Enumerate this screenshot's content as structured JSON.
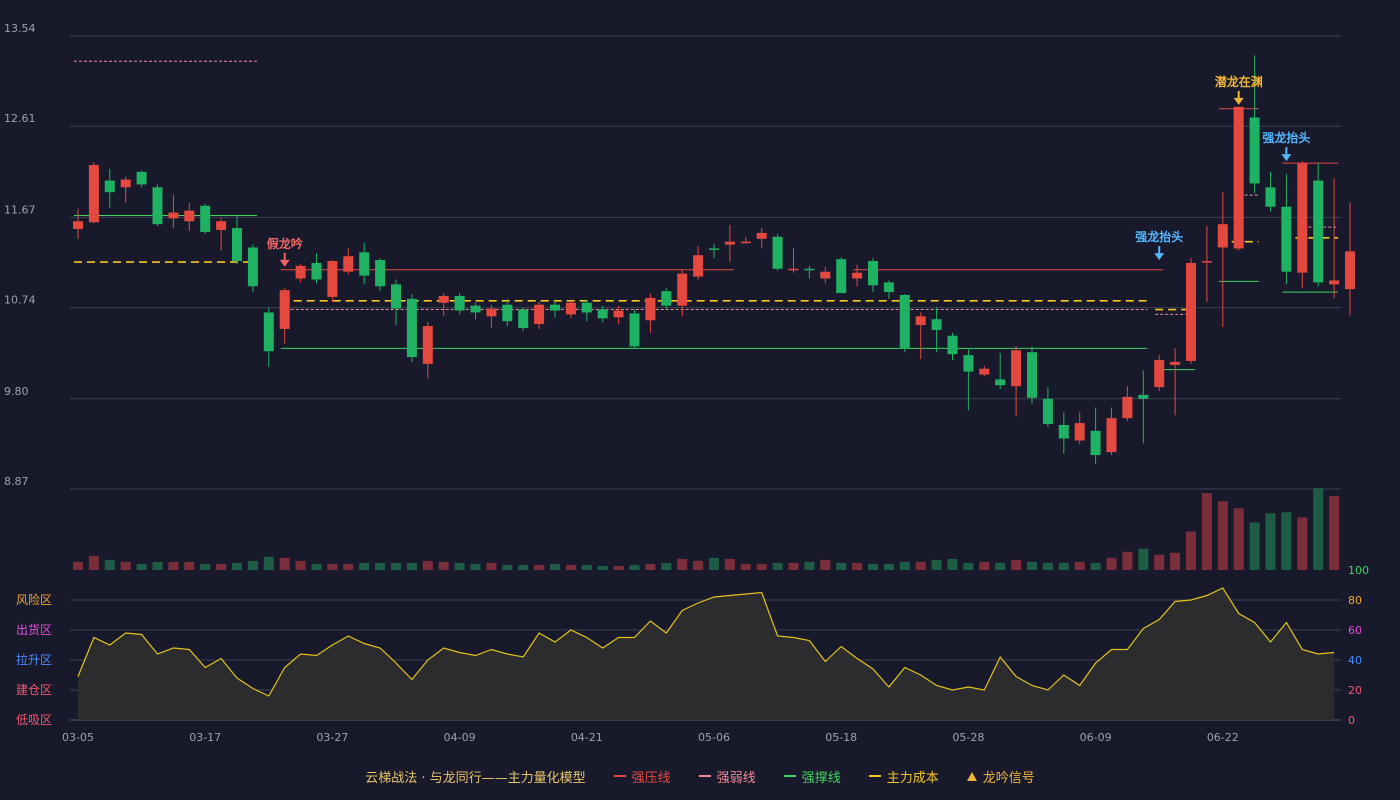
{
  "chart_data": {
    "type": "candlestick",
    "title": "云梯战法 · 与龙同行——主力量化模型",
    "colors": {
      "background": "#181a2c",
      "up": "#e5483f",
      "down": "#1fb262",
      "grid": "#3b3f55",
      "axis_text": "#9aa0b2",
      "pressure": "#e5483f",
      "weak": "#f08b96",
      "support": "#3ed45f",
      "cost": "#f5c621",
      "signal_red": "#f06563",
      "signal_gold": "#f0b43a",
      "signal_blue": "#55b6ff",
      "oscillator_line": "#e3c21e"
    },
    "price_axis": {
      "ticks": [
        "13.54",
        "12.61",
        "11.67",
        "10.74",
        "9.80",
        "8.87"
      ],
      "range": [
        8.87,
        13.54
      ]
    },
    "oscillator_axis": {
      "ticks": [
        "100",
        "80",
        "60",
        "40",
        "20",
        "0"
      ],
      "tick_colors": [
        "#3ed45f",
        "#f0a531",
        "#e14ed8",
        "#4a8eff",
        "#f05a6e",
        "#f05a6e"
      ],
      "zones": [
        {
          "label": "风险区",
          "color": "#f0a531",
          "level": 80
        },
        {
          "label": "出货区",
          "color": "#e14ed8",
          "level": 60
        },
        {
          "label": "拉升区",
          "color": "#4a8eff",
          "level": 40
        },
        {
          "label": "建仓区",
          "color": "#f05a6e",
          "level": 20
        },
        {
          "label": "低吸区",
          "color": "#f05a6e",
          "level": 0
        }
      ]
    },
    "date_labels": [
      {
        "index": 0,
        "label": "03-05"
      },
      {
        "index": 8,
        "label": "03-17"
      },
      {
        "index": 16,
        "label": "03-27"
      },
      {
        "index": 24,
        "label": "04-09"
      },
      {
        "index": 32,
        "label": "04-21"
      },
      {
        "index": 40,
        "label": "05-06"
      },
      {
        "index": 48,
        "label": "05-18"
      },
      {
        "index": 56,
        "label": "05-28"
      },
      {
        "index": 64,
        "label": "06-09"
      },
      {
        "index": 72,
        "label": "06-22"
      }
    ],
    "candles": [
      [
        11.55,
        11.63,
        11.45,
        11.76
      ],
      [
        11.62,
        12.21,
        11.61,
        12.24
      ],
      [
        12.05,
        11.93,
        11.77,
        12.17
      ],
      [
        11.98,
        12.06,
        11.82,
        12.09
      ],
      [
        12.14,
        12.01,
        11.98,
        12.15
      ],
      [
        11.98,
        11.6,
        11.58,
        12.01
      ],
      [
        11.66,
        11.72,
        11.56,
        11.9
      ],
      [
        11.63,
        11.74,
        11.53,
        11.82
      ],
      [
        11.79,
        11.52,
        11.5,
        11.81
      ],
      [
        11.54,
        11.63,
        11.33,
        11.67
      ],
      [
        11.56,
        11.22,
        11.19,
        11.68
      ],
      [
        11.36,
        10.96,
        10.9,
        11.39
      ],
      [
        10.69,
        10.29,
        10.13,
        10.74
      ],
      [
        10.52,
        10.92,
        10.37,
        10.94
      ],
      [
        11.04,
        11.17,
        11.0,
        11.19
      ],
      [
        11.2,
        11.03,
        10.99,
        11.3
      ],
      [
        10.85,
        11.22,
        10.8,
        11.23
      ],
      [
        11.11,
        11.27,
        11.08,
        11.35
      ],
      [
        11.31,
        11.07,
        10.98,
        11.41
      ],
      [
        11.23,
        10.96,
        10.91,
        11.25
      ],
      [
        10.98,
        10.73,
        10.56,
        11.03
      ],
      [
        10.83,
        10.23,
        10.18,
        10.88
      ],
      [
        10.16,
        10.55,
        10.01,
        10.59
      ],
      [
        10.79,
        10.86,
        10.65,
        10.89
      ],
      [
        10.86,
        10.71,
        10.67,
        10.89
      ],
      [
        10.76,
        10.69,
        10.62,
        10.79
      ],
      [
        10.65,
        10.73,
        10.53,
        10.77
      ],
      [
        10.77,
        10.6,
        10.55,
        10.83
      ],
      [
        10.72,
        10.53,
        10.5,
        10.74
      ],
      [
        10.57,
        10.77,
        10.52,
        10.8
      ],
      [
        10.77,
        10.71,
        10.64,
        10.81
      ],
      [
        10.67,
        10.79,
        10.63,
        10.81
      ],
      [
        10.79,
        10.69,
        10.6,
        10.82
      ],
      [
        10.72,
        10.63,
        10.59,
        10.76
      ],
      [
        10.64,
        10.71,
        10.57,
        10.76
      ],
      [
        10.68,
        10.34,
        10.32,
        10.72
      ],
      [
        10.61,
        10.84,
        10.48,
        10.88
      ],
      [
        10.91,
        10.76,
        10.72,
        10.94
      ],
      [
        10.76,
        11.09,
        10.65,
        11.13
      ],
      [
        11.06,
        11.28,
        11.03,
        11.37
      ],
      [
        11.35,
        11.34,
        11.25,
        11.4
      ],
      [
        11.39,
        11.42,
        11.21,
        11.59
      ],
      [
        11.41,
        11.42,
        11.4,
        11.47
      ],
      [
        11.45,
        11.51,
        11.35,
        11.56
      ],
      [
        11.47,
        11.14,
        11.12,
        11.5
      ],
      [
        11.13,
        11.14,
        11.1,
        11.35
      ],
      [
        11.14,
        11.13,
        11.04,
        11.17
      ],
      [
        11.04,
        11.11,
        10.99,
        11.16
      ],
      [
        11.24,
        10.89,
        10.89,
        11.26
      ],
      [
        11.04,
        11.1,
        10.96,
        11.18
      ],
      [
        11.22,
        10.97,
        10.9,
        11.25
      ],
      [
        11.0,
        10.9,
        10.83,
        11.02
      ],
      [
        10.87,
        10.32,
        10.28,
        10.88
      ],
      [
        10.56,
        10.65,
        10.21,
        10.69
      ],
      [
        10.62,
        10.51,
        10.28,
        10.74
      ],
      [
        10.45,
        10.26,
        10.2,
        10.48
      ],
      [
        10.25,
        10.08,
        9.68,
        10.31
      ],
      [
        10.05,
        10.11,
        10.03,
        10.14
      ],
      [
        10.0,
        9.94,
        9.9,
        10.27
      ],
      [
        9.93,
        10.3,
        9.62,
        10.34
      ],
      [
        10.28,
        9.81,
        9.75,
        10.34
      ],
      [
        9.8,
        9.54,
        9.51,
        9.92
      ],
      [
        9.53,
        9.39,
        9.23,
        9.66
      ],
      [
        9.37,
        9.55,
        9.33,
        9.66
      ],
      [
        9.47,
        9.22,
        9.13,
        9.71
      ],
      [
        9.25,
        9.6,
        9.22,
        9.71
      ],
      [
        9.6,
        9.82,
        9.57,
        9.93
      ],
      [
        9.84,
        9.8,
        9.34,
        10.09
      ],
      [
        9.92,
        10.2,
        9.88,
        10.25
      ],
      [
        10.15,
        10.18,
        9.63,
        10.32
      ],
      [
        10.19,
        11.2,
        10.16,
        11.25
      ],
      [
        11.21,
        11.22,
        10.8,
        11.58
      ],
      [
        11.36,
        11.6,
        10.54,
        11.93
      ],
      [
        11.35,
        12.81,
        11.33,
        12.81
      ],
      [
        12.7,
        12.02,
        11.92,
        13.34
      ],
      [
        11.98,
        11.78,
        11.73,
        12.14
      ],
      [
        11.78,
        11.11,
        10.98,
        12.12
      ],
      [
        11.1,
        12.23,
        10.94,
        12.25
      ],
      [
        12.05,
        11.0,
        10.96,
        12.23
      ],
      [
        10.98,
        11.02,
        10.84,
        12.07
      ],
      [
        10.93,
        11.32,
        10.66,
        11.82
      ]
    ],
    "volume": [
      8,
      14,
      10,
      8,
      6,
      8,
      8,
      8,
      6,
      6,
      7,
      9,
      13,
      12,
      9,
      6,
      6,
      6,
      7,
      7,
      7,
      7,
      9,
      8,
      7,
      6,
      7,
      5,
      5,
      5,
      6,
      5,
      5,
      4,
      4,
      5,
      6,
      7,
      11,
      9,
      12,
      11,
      6,
      6,
      7,
      7,
      8,
      10,
      7,
      7,
      6,
      6,
      8,
      8,
      10,
      11,
      7,
      8,
      7,
      10,
      8,
      7,
      7,
      8,
      7,
      12,
      18,
      21,
      15,
      17,
      38,
      76,
      68,
      61,
      47,
      56,
      57,
      52,
      81,
      73
    ],
    "oscillator": [
      29,
      55,
      50,
      58,
      57,
      44,
      48,
      47,
      35,
      41,
      28,
      21,
      16,
      35,
      44,
      43,
      50,
      56,
      51,
      48,
      38,
      27,
      40,
      48,
      45,
      43,
      47,
      44,
      42,
      58,
      52,
      60,
      55,
      48,
      55,
      55,
      66,
      58,
      73,
      78,
      82,
      83,
      84,
      85,
      56,
      55,
      53,
      39,
      49,
      41,
      34,
      22,
      35,
      30,
      23,
      20,
      22,
      20,
      42,
      29,
      23,
      20,
      30,
      23,
      38,
      47,
      47,
      61,
      67,
      79,
      80,
      83,
      88,
      71,
      65,
      52,
      65,
      47,
      44,
      45
    ],
    "lines": [
      {
        "name": "强压线",
        "style": "solid",
        "color_key": "pressure",
        "segments": [
          [
            13,
            41,
            11.13
          ],
          [
            49,
            68,
            11.13
          ],
          [
            72,
            74,
            12.79
          ],
          [
            76,
            79,
            12.23
          ]
        ]
      },
      {
        "name": "强弱线",
        "style": "dotted",
        "color_key": "weak",
        "segments": [
          [
            0,
            11,
            13.28
          ],
          [
            13,
            67,
            10.72
          ],
          [
            68,
            70,
            10.67
          ],
          [
            73,
            74,
            11.9
          ],
          [
            77,
            79,
            11.57
          ]
        ]
      },
      {
        "name": "强撑线",
        "style": "solid",
        "color_key": "support",
        "segments": [
          [
            0,
            11,
            11.69
          ],
          [
            13,
            67,
            10.32
          ],
          [
            68,
            70,
            10.1
          ],
          [
            72,
            74,
            11.01
          ],
          [
            76,
            79,
            10.9
          ]
        ]
      },
      {
        "name": "主力成本",
        "style": "dashed",
        "color_key": "cost",
        "segments": [
          [
            0,
            11,
            11.21
          ],
          [
            13,
            67,
            10.81
          ],
          [
            68,
            70,
            10.72
          ],
          [
            72,
            74,
            11.42
          ],
          [
            76,
            79,
            11.46
          ]
        ]
      }
    ],
    "signals": [
      {
        "index": 13,
        "label": "假龙吟",
        "color_key": "signal_red",
        "price": 11.16
      },
      {
        "index": 73,
        "label": "潜龙在渊",
        "color_key": "signal_gold",
        "price": 12.83
      },
      {
        "index": 68,
        "label": "强龙抬头",
        "color_key": "signal_blue",
        "price": 11.23
      },
      {
        "index": 76,
        "label": "强龙抬头",
        "color_key": "signal_blue",
        "price": 12.25
      }
    ],
    "legend": [
      {
        "label": "强压线",
        "kind": "solid",
        "color": "#e5483f"
      },
      {
        "label": "强弱线",
        "kind": "dash",
        "color": "#f08b96"
      },
      {
        "label": "强撑线",
        "kind": "solid",
        "color": "#3ed45f"
      },
      {
        "label": "主力成本",
        "kind": "dash",
        "color": "#f5c621"
      },
      {
        "label": "龙吟信号",
        "kind": "tri",
        "color": "#f0b43a"
      }
    ]
  }
}
